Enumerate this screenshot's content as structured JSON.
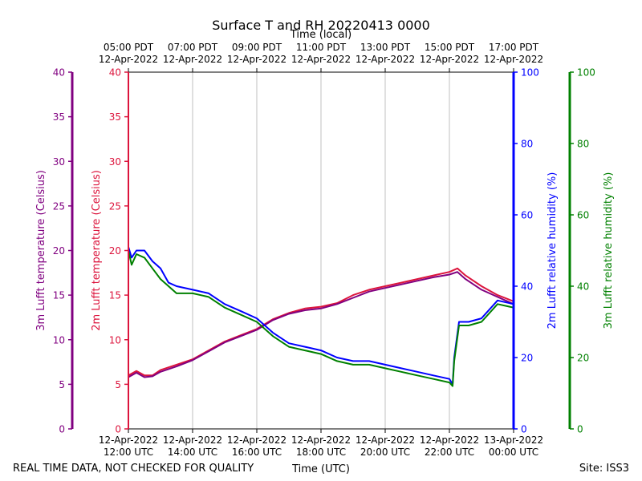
{
  "chart_data": {
    "type": "line",
    "title": "Surface T and RH 20220413 0000",
    "top_axis_title": "Time (local)",
    "bottom_axis_title": "Time (UTC)",
    "footer_left": "REAL TIME DATA, NOT CHECKED FOR QUALITY",
    "footer_right": "Site: ISS3",
    "x_range_hours": [
      12,
      24
    ],
    "x_ticks": [
      {
        "h": 12,
        "utc": [
          "12-Apr-2022",
          "12:00 UTC"
        ],
        "local": [
          "05:00 PDT",
          "12-Apr-2022"
        ]
      },
      {
        "h": 14,
        "utc": [
          "12-Apr-2022",
          "14:00 UTC"
        ],
        "local": [
          "07:00 PDT",
          "12-Apr-2022"
        ]
      },
      {
        "h": 16,
        "utc": [
          "12-Apr-2022",
          "16:00 UTC"
        ],
        "local": [
          "09:00 PDT",
          "12-Apr-2022"
        ]
      },
      {
        "h": 18,
        "utc": [
          "12-Apr-2022",
          "18:00 UTC"
        ],
        "local": [
          "11:00 PDT",
          "12-Apr-2022"
        ]
      },
      {
        "h": 20,
        "utc": [
          "12-Apr-2022",
          "20:00 UTC"
        ],
        "local": [
          "13:00 PDT",
          "12-Apr-2022"
        ]
      },
      {
        "h": 22,
        "utc": [
          "12-Apr-2022",
          "22:00 UTC"
        ],
        "local": [
          "15:00 PDT",
          "12-Apr-2022"
        ]
      },
      {
        "h": 24,
        "utc": [
          "13-Apr-2022",
          "00:00 UTC"
        ],
        "local": [
          "17:00 PDT",
          "12-Apr-2022"
        ]
      }
    ],
    "axes": {
      "temp3m": {
        "label": "3m Lufft temperature (Celsius)",
        "color": "#800080",
        "range": [
          0,
          40
        ],
        "ticks": [
          0,
          5,
          10,
          15,
          20,
          25,
          30,
          35,
          40
        ]
      },
      "temp2m": {
        "label": "2m Lufft temperature (Celsius)",
        "color": "#dc143c",
        "range": [
          0,
          40
        ],
        "ticks": [
          0,
          5,
          10,
          15,
          20,
          25,
          30,
          35,
          40
        ]
      },
      "rh2m": {
        "label": "2m Lufft relative humidity (%)",
        "color": "#0000ff",
        "range": [
          0,
          100
        ],
        "ticks": [
          0,
          20,
          40,
          60,
          80,
          100
        ]
      },
      "rh3m": {
        "label": "3m Lufft relative humidity (%)",
        "color": "#008000",
        "range": [
          0,
          100
        ],
        "ticks": [
          0,
          20,
          40,
          60,
          80,
          100
        ]
      }
    },
    "series": [
      {
        "name": "2m temperature",
        "axis": "temp2m",
        "color": "#dc143c",
        "x": [
          12.0,
          12.25,
          12.5,
          12.75,
          13.0,
          13.5,
          14.0,
          14.5,
          15.0,
          15.5,
          16.0,
          16.5,
          17.0,
          17.5,
          18.0,
          18.5,
          19.0,
          19.5,
          20.0,
          20.5,
          21.0,
          21.5,
          22.0,
          22.25,
          22.5,
          23.0,
          23.5,
          24.0
        ],
        "values": [
          6.0,
          6.5,
          6.0,
          6.0,
          6.6,
          7.2,
          7.8,
          8.8,
          9.8,
          10.5,
          11.2,
          12.3,
          13.0,
          13.5,
          13.7,
          14.1,
          15.0,
          15.6,
          16.0,
          16.4,
          16.8,
          17.2,
          17.6,
          18.0,
          17.2,
          16.0,
          15.0,
          14.3
        ]
      },
      {
        "name": "3m temperature",
        "axis": "temp3m",
        "color": "#800080",
        "x": [
          12.0,
          12.25,
          12.5,
          12.75,
          13.0,
          13.5,
          14.0,
          14.5,
          15.0,
          15.5,
          16.0,
          16.5,
          17.0,
          17.5,
          18.0,
          18.5,
          19.0,
          19.5,
          20.0,
          20.5,
          21.0,
          21.5,
          22.0,
          22.25,
          22.5,
          23.0,
          23.5,
          24.0
        ],
        "values": [
          5.8,
          6.3,
          5.8,
          5.9,
          6.4,
          7.0,
          7.7,
          8.7,
          9.7,
          10.4,
          11.1,
          12.2,
          12.9,
          13.3,
          13.5,
          14.0,
          14.7,
          15.4,
          15.8,
          16.2,
          16.6,
          17.0,
          17.3,
          17.6,
          16.8,
          15.6,
          14.8,
          14.0
        ]
      },
      {
        "name": "2m relative humidity",
        "axis": "rh2m",
        "color": "#0000ff",
        "x": [
          12.0,
          12.1,
          12.25,
          12.5,
          12.75,
          13.0,
          13.25,
          13.5,
          14.0,
          14.5,
          15.0,
          15.5,
          16.0,
          16.5,
          17.0,
          17.5,
          18.0,
          18.5,
          19.0,
          19.5,
          20.0,
          20.5,
          21.0,
          21.5,
          22.0,
          22.1,
          22.15,
          22.3,
          22.6,
          23.0,
          23.5,
          24.0
        ],
        "values": [
          51,
          48,
          50,
          50,
          47,
          45,
          41,
          40,
          39,
          38,
          35,
          33,
          31,
          27,
          24,
          23,
          22,
          20,
          19,
          19,
          18,
          17,
          16,
          15,
          14,
          12.5,
          20,
          30,
          30,
          31,
          36,
          35
        ]
      },
      {
        "name": "3m relative humidity",
        "axis": "rh3m",
        "color": "#008000",
        "x": [
          12.0,
          12.1,
          12.25,
          12.5,
          12.75,
          13.0,
          13.25,
          13.5,
          14.0,
          14.5,
          15.0,
          15.5,
          16.0,
          16.5,
          17.0,
          17.5,
          18.0,
          18.5,
          19.0,
          19.5,
          20.0,
          20.5,
          21.0,
          21.5,
          22.0,
          22.1,
          22.15,
          22.3,
          22.6,
          23.0,
          23.5,
          24.0
        ],
        "values": [
          50,
          46,
          49,
          48,
          45,
          42,
          40,
          38,
          38,
          37,
          34,
          32,
          30,
          26,
          23,
          22,
          21,
          19,
          18,
          18,
          17,
          16,
          15,
          14,
          13,
          12,
          19,
          29,
          29,
          30,
          35,
          34
        ]
      }
    ]
  }
}
